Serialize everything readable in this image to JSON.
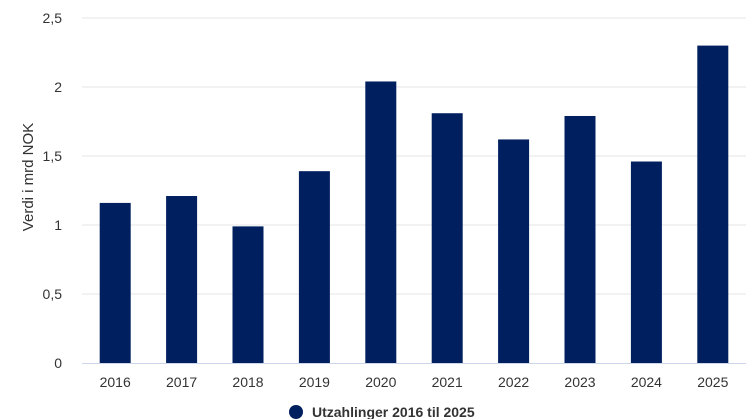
{
  "chart_data": {
    "type": "bar",
    "categories": [
      "2016",
      "2017",
      "2018",
      "2019",
      "2020",
      "2021",
      "2022",
      "2023",
      "2024",
      "2025"
    ],
    "series": [
      {
        "name": "Utzahlinger 2016 til 2025",
        "values": [
          1.16,
          1.21,
          0.99,
          1.39,
          2.04,
          1.81,
          1.62,
          1.79,
          1.46,
          2.3
        ]
      }
    ],
    "xlabel": "",
    "ylabel": "Verdi i mrd NOK",
    "ylim": [
      0,
      2.5
    ],
    "yticks": [
      {
        "value": 0,
        "label": "0"
      },
      {
        "value": 0.5,
        "label": "0,5"
      },
      {
        "value": 1,
        "label": "1"
      },
      {
        "value": 1.5,
        "label": "1,5"
      },
      {
        "value": 2,
        "label": "2"
      },
      {
        "value": 2.5,
        "label": "2,5"
      }
    ],
    "grid": true,
    "legend_position": "bottom",
    "colors": {
      "bar": "#001f5f",
      "grid": "#e6e6e6",
      "axis": "#ccd6eb"
    }
  }
}
